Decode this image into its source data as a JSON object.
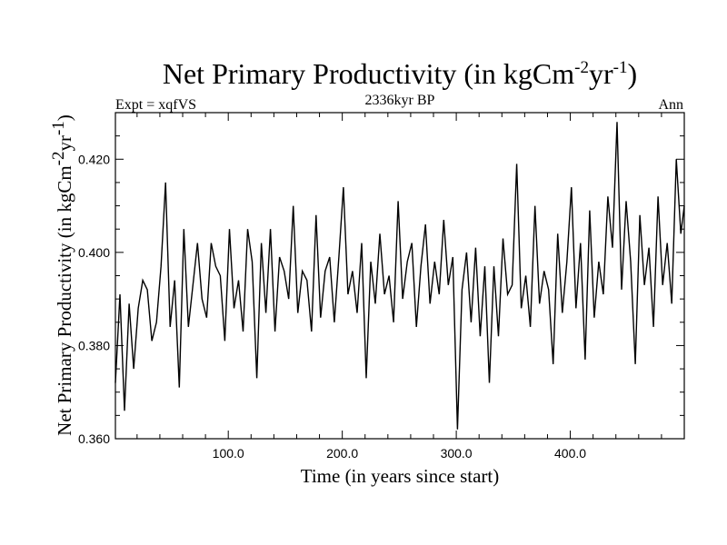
{
  "chart_data": {
    "type": "line",
    "title": "Net Primary Productivity (in kgCm-2yr-1)",
    "title_parts": {
      "main": "Net Primary Productivity (in kgCm",
      "sup1": "-2",
      "mid": "yr",
      "sup2": "-1",
      "end": ")"
    },
    "experiment_label": "Expt = xqfVS",
    "subtitle": "2336kyr BP",
    "season_label": "Ann",
    "xlabel": "Time (in years since start)",
    "ylabel": "Net Primary Productivity (in kgCm-2yr-1)",
    "ylabel_parts": {
      "main": "Net Primary Productivity (in kgCm",
      "sup1": "-2",
      "mid": "yr",
      "sup2": "-1",
      "end": ")"
    },
    "xlim": [
      1,
      500
    ],
    "ylim": [
      0.36,
      0.43
    ],
    "xticks_major": [
      100,
      200,
      300,
      400
    ],
    "xticks_major_labels": [
      "100.0",
      "200.0",
      "300.0",
      "400.0"
    ],
    "yticks_major": [
      0.36,
      0.38,
      0.4,
      0.42
    ],
    "yticks_major_labels": [
      "0.360",
      "0.380",
      "0.400",
      "0.420"
    ],
    "line_color": "#000000",
    "x": [
      1,
      5,
      9,
      13,
      17,
      21,
      25,
      29,
      33,
      37,
      41,
      45,
      49,
      53,
      57,
      61,
      65,
      69,
      73,
      77,
      81,
      85,
      89,
      93,
      97,
      101,
      105,
      109,
      113,
      117,
      121,
      125,
      129,
      133,
      137,
      141,
      145,
      149,
      153,
      157,
      161,
      165,
      169,
      173,
      177,
      181,
      185,
      189,
      193,
      197,
      201,
      205,
      209,
      213,
      217,
      221,
      225,
      229,
      233,
      237,
      241,
      245,
      249,
      253,
      257,
      261,
      265,
      269,
      273,
      277,
      281,
      285,
      289,
      293,
      297,
      301,
      305,
      309,
      313,
      317,
      321,
      325,
      329,
      333,
      337,
      341,
      345,
      349,
      353,
      357,
      361,
      365,
      369,
      373,
      377,
      381,
      385,
      389,
      393,
      397,
      401,
      405,
      409,
      413,
      417,
      421,
      425,
      429,
      433,
      437,
      441,
      445,
      449,
      453,
      457,
      461,
      465,
      469,
      473,
      477,
      481,
      485,
      489,
      493,
      497,
      500
    ],
    "values": [
      0.372,
      0.391,
      0.366,
      0.389,
      0.375,
      0.388,
      0.394,
      0.392,
      0.381,
      0.385,
      0.397,
      0.415,
      0.384,
      0.394,
      0.371,
      0.405,
      0.384,
      0.393,
      0.402,
      0.39,
      0.386,
      0.402,
      0.397,
      0.395,
      0.381,
      0.405,
      0.388,
      0.394,
      0.383,
      0.405,
      0.398,
      0.373,
      0.402,
      0.387,
      0.405,
      0.383,
      0.399,
      0.396,
      0.39,
      0.41,
      0.387,
      0.396,
      0.394,
      0.383,
      0.408,
      0.386,
      0.396,
      0.399,
      0.385,
      0.399,
      0.414,
      0.391,
      0.396,
      0.387,
      0.402,
      0.373,
      0.398,
      0.389,
      0.404,
      0.391,
      0.395,
      0.385,
      0.411,
      0.39,
      0.398,
      0.402,
      0.384,
      0.397,
      0.406,
      0.389,
      0.398,
      0.391,
      0.407,
      0.393,
      0.399,
      0.362,
      0.392,
      0.4,
      0.385,
      0.401,
      0.382,
      0.397,
      0.372,
      0.397,
      0.382,
      0.403,
      0.391,
      0.393,
      0.419,
      0.388,
      0.395,
      0.384,
      0.41,
      0.389,
      0.396,
      0.392,
      0.376,
      0.404,
      0.387,
      0.398,
      0.414,
      0.388,
      0.402,
      0.377,
      0.409,
      0.386,
      0.398,
      0.391,
      0.412,
      0.401,
      0.428,
      0.392,
      0.411,
      0.398,
      0.376,
      0.408,
      0.393,
      0.401,
      0.384,
      0.412,
      0.393,
      0.402,
      0.389,
      0.42,
      0.404,
      0.41
    ]
  }
}
